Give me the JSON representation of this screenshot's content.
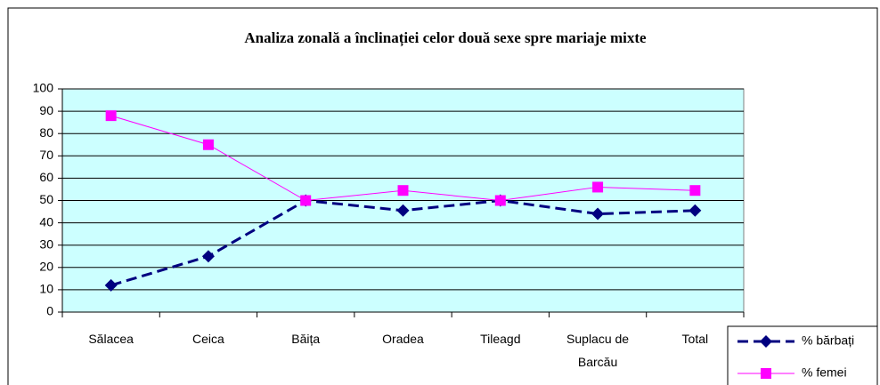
{
  "chart_data": {
    "type": "line",
    "title": "Analiza zonală a înclinației celor două sexe spre mariaje mixte",
    "categories": [
      "Sălacea",
      "Ceica",
      "Băița",
      "Oradea",
      "Tileagd",
      "Suplacu de Barcău",
      "Total"
    ],
    "series": [
      {
        "name": "% bărbați",
        "color": "#000080",
        "marker": "diamond",
        "dashed": true,
        "values": [
          12,
          25,
          50,
          45.5,
          50,
          44,
          45.5
        ]
      },
      {
        "name": "% femei",
        "color": "#ff00ff",
        "marker": "square",
        "dashed": false,
        "values": [
          88,
          75,
          50,
          54.5,
          50,
          56,
          54.5
        ]
      }
    ],
    "ylim": [
      0,
      100
    ],
    "yticks": [
      0,
      10,
      20,
      30,
      40,
      50,
      60,
      70,
      80,
      90,
      100
    ],
    "grid": true,
    "background": "#ccffff",
    "legend": "bottom-right"
  }
}
